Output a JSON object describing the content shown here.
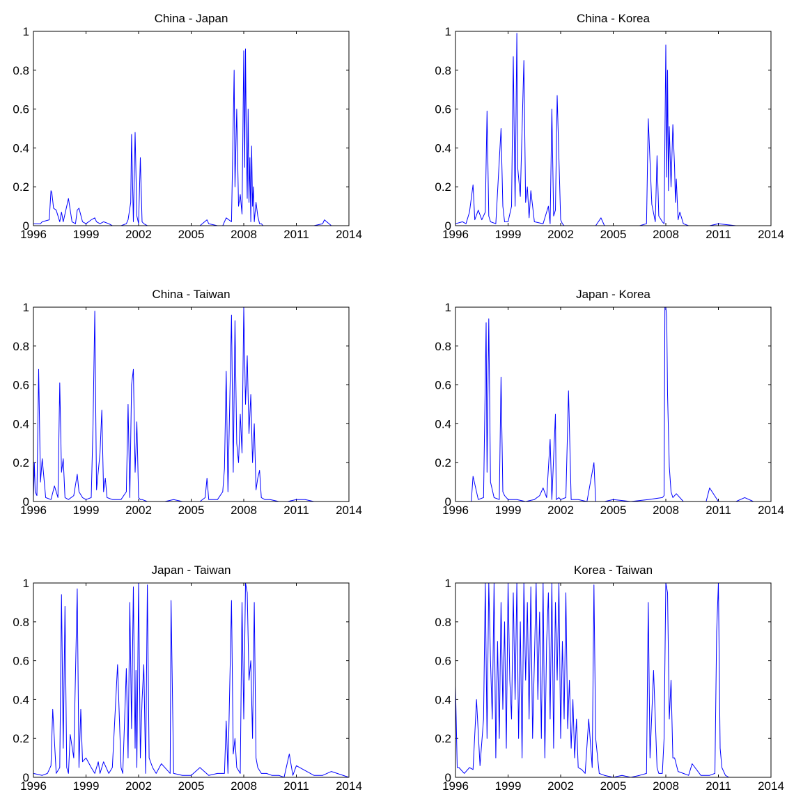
{
  "figure": {
    "line_color": "#0000ff",
    "axis_color": "#000000",
    "background": "#ffffff"
  },
  "chart_data": [
    {
      "type": "line",
      "title": "China - Japan",
      "xlabel": "",
      "ylabel": "",
      "xlim": [
        1996,
        2014
      ],
      "ylim": [
        0,
        1
      ],
      "xticks": [
        1996,
        1999,
        2002,
        2005,
        2008,
        2011,
        2014
      ],
      "yticks": [
        0,
        0.2,
        0.4,
        0.6,
        0.8,
        1
      ],
      "xtick_labels": [
        "1996",
        "1999",
        "2002",
        "2005",
        "2008",
        "2011",
        "2014"
      ],
      "ytick_labels": [
        "0",
        "0.2",
        "0.4",
        "0.6",
        "0.8",
        "1"
      ],
      "grid": false,
      "x": [
        1996.0,
        1996.4,
        1996.5,
        1996.9,
        1997.0,
        1997.05,
        1997.15,
        1997.3,
        1997.5,
        1997.6,
        1997.7,
        1998.0,
        1998.2,
        1998.4,
        1998.5,
        1998.6,
        1998.8,
        1999.0,
        1999.3,
        1999.5,
        1999.6,
        1999.8,
        2000.0,
        2000.3,
        2000.5,
        2001.0,
        2001.3,
        2001.4,
        2001.55,
        2001.6,
        2001.7,
        2001.8,
        2001.9,
        2002.0,
        2002.1,
        2002.2,
        2002.3,
        2002.5,
        2003.0,
        2003.5,
        2004.0,
        2004.5,
        2005.0,
        2005.5,
        2005.9,
        2006.0,
        2006.5,
        2006.8,
        2007.0,
        2007.3,
        2007.45,
        2007.5,
        2007.6,
        2007.7,
        2007.8,
        2007.9,
        2008.0,
        2008.05,
        2008.1,
        2008.15,
        2008.2,
        2008.25,
        2008.3,
        2008.35,
        2008.4,
        2008.45,
        2008.5,
        2008.55,
        2008.6,
        2008.7,
        2008.8,
        2008.9,
        2009.0,
        2009.1,
        2009.3,
        2010.0,
        2011.0,
        2012.0,
        2012.5,
        2012.6,
        2013.0,
        2014.0
      ],
      "y": [
        0.01,
        0.01,
        0.02,
        0.03,
        0.18,
        0.17,
        0.09,
        0.08,
        0.02,
        0.07,
        0.02,
        0.14,
        0.02,
        0.01,
        0.08,
        0.09,
        0.02,
        0.01,
        0.03,
        0.04,
        0.02,
        0.01,
        0.02,
        0.01,
        0.0,
        0.0,
        0.01,
        0.03,
        0.12,
        0.47,
        0.02,
        0.48,
        0.05,
        0.01,
        0.35,
        0.02,
        0.01,
        0.0,
        0.0,
        0.0,
        0.0,
        0.0,
        0.0,
        0.0,
        0.03,
        0.01,
        0.0,
        0.0,
        0.04,
        0.02,
        0.8,
        0.2,
        0.6,
        0.1,
        0.16,
        0.06,
        0.9,
        0.3,
        0.91,
        0.4,
        0.14,
        0.6,
        0.12,
        0.35,
        0.02,
        0.41,
        0.1,
        0.2,
        0.02,
        0.12,
        0.05,
        0.01,
        0.01,
        0.0,
        0.0,
        0.0,
        0.0,
        0.0,
        0.01,
        0.03,
        0.0,
        0.0
      ]
    },
    {
      "type": "line",
      "title": "China - Korea",
      "xlabel": "",
      "ylabel": "",
      "xlim": [
        1996,
        2014
      ],
      "ylim": [
        0,
        1
      ],
      "xticks": [
        1996,
        1999,
        2002,
        2005,
        2008,
        2011,
        2014
      ],
      "yticks": [
        0,
        0.2,
        0.4,
        0.6,
        0.8,
        1
      ],
      "xtick_labels": [
        "1996",
        "1999",
        "2002",
        "2005",
        "2008",
        "2011",
        "2014"
      ],
      "ytick_labels": [
        "0",
        "0.2",
        "0.4",
        "0.6",
        "0.8",
        "1"
      ],
      "grid": false,
      "x": [
        1996.0,
        1996.4,
        1996.6,
        1996.8,
        1997.0,
        1997.1,
        1997.3,
        1997.5,
        1997.7,
        1997.8,
        1997.9,
        1998.0,
        1998.3,
        1998.6,
        1998.7,
        1998.8,
        1999.0,
        1999.2,
        1999.3,
        1999.4,
        1999.5,
        1999.55,
        1999.7,
        1999.9,
        2000.0,
        2000.1,
        2000.2,
        2000.3,
        2000.5,
        2001.0,
        2001.3,
        2001.4,
        2001.5,
        2001.6,
        2001.7,
        2001.8,
        2002.0,
        2002.1,
        2002.2,
        2002.3,
        2002.5,
        2003.0,
        2003.5,
        2004.0,
        2004.3,
        2004.5,
        2005.0,
        2006.0,
        2006.5,
        2006.9,
        2007.0,
        2007.2,
        2007.4,
        2007.5,
        2007.6,
        2007.8,
        2007.9,
        2008.0,
        2008.05,
        2008.1,
        2008.15,
        2008.2,
        2008.3,
        2008.4,
        2008.5,
        2008.55,
        2008.6,
        2008.7,
        2008.8,
        2009.0,
        2009.3,
        2010.0,
        2010.5,
        2011.0,
        2012.0,
        2013.0,
        2014.0
      ],
      "y": [
        0.01,
        0.02,
        0.01,
        0.07,
        0.21,
        0.03,
        0.08,
        0.03,
        0.07,
        0.59,
        0.05,
        0.02,
        0.01,
        0.5,
        0.1,
        0.02,
        0.02,
        0.1,
        0.87,
        0.1,
        0.99,
        0.3,
        0.15,
        0.85,
        0.12,
        0.2,
        0.04,
        0.18,
        0.02,
        0.01,
        0.1,
        0.01,
        0.6,
        0.05,
        0.08,
        0.67,
        0.03,
        0.01,
        0.0,
        0.0,
        0.0,
        0.0,
        0.0,
        0.0,
        0.04,
        0.0,
        0.0,
        0.0,
        0.0,
        0.01,
        0.55,
        0.11,
        0.02,
        0.36,
        0.05,
        0.02,
        0.01,
        0.93,
        0.25,
        0.8,
        0.18,
        0.51,
        0.2,
        0.52,
        0.3,
        0.12,
        0.24,
        0.03,
        0.07,
        0.01,
        0.0,
        0.0,
        0.0,
        0.01,
        0.0,
        0.0,
        0.0
      ]
    },
    {
      "type": "line",
      "title": "China - Taiwan",
      "xlabel": "",
      "ylabel": "",
      "xlim": [
        1996,
        2014
      ],
      "ylim": [
        0,
        1
      ],
      "xticks": [
        1996,
        1999,
        2002,
        2005,
        2008,
        2011,
        2014
      ],
      "yticks": [
        0,
        0.2,
        0.4,
        0.6,
        0.8,
        1
      ],
      "xtick_labels": [
        "1996",
        "1999",
        "2002",
        "2005",
        "2008",
        "2011",
        "2014"
      ],
      "ytick_labels": [
        "0",
        "0.2",
        "0.4",
        "0.6",
        "0.8",
        "1"
      ],
      "grid": false,
      "x": [
        1996.0,
        1996.05,
        1996.1,
        1996.2,
        1996.3,
        1996.4,
        1996.5,
        1996.7,
        1997.0,
        1997.2,
        1997.4,
        1997.5,
        1997.6,
        1997.7,
        1997.8,
        1998.0,
        1998.3,
        1998.5,
        1998.6,
        1998.8,
        1999.0,
        1999.3,
        1999.4,
        1999.5,
        1999.6,
        1999.8,
        1999.9,
        2000.0,
        2000.1,
        2000.2,
        2000.5,
        2001.0,
        2001.3,
        2001.4,
        2001.5,
        2001.6,
        2001.7,
        2001.8,
        2001.9,
        2002.0,
        2002.1,
        2002.2,
        2002.5,
        2003.0,
        2003.5,
        2004.0,
        2004.5,
        2005.0,
        2005.5,
        2005.8,
        2005.9,
        2006.0,
        2006.5,
        2006.8,
        2006.9,
        2007.0,
        2007.1,
        2007.3,
        2007.4,
        2007.5,
        2007.6,
        2007.7,
        2007.8,
        2007.9,
        2008.0,
        2008.1,
        2008.2,
        2008.3,
        2008.4,
        2008.5,
        2008.6,
        2008.7,
        2008.8,
        2008.9,
        2009.0,
        2009.2,
        2009.5,
        2010.0,
        2010.5,
        2011.0,
        2011.5,
        2012.0,
        2013.0,
        2014.0
      ],
      "y": [
        0.02,
        0.2,
        0.05,
        0.03,
        0.68,
        0.1,
        0.22,
        0.02,
        0.01,
        0.08,
        0.02,
        0.61,
        0.15,
        0.22,
        0.02,
        0.01,
        0.03,
        0.14,
        0.05,
        0.02,
        0.01,
        0.02,
        0.4,
        0.98,
        0.06,
        0.25,
        0.47,
        0.05,
        0.12,
        0.02,
        0.01,
        0.01,
        0.05,
        0.5,
        0.02,
        0.6,
        0.68,
        0.15,
        0.41,
        0.02,
        0.01,
        0.01,
        0.0,
        0.0,
        0.0,
        0.01,
        0.0,
        0.0,
        0.0,
        0.02,
        0.12,
        0.01,
        0.01,
        0.05,
        0.17,
        0.67,
        0.05,
        0.96,
        0.15,
        0.93,
        0.3,
        0.2,
        0.45,
        0.25,
        1.0,
        0.5,
        0.75,
        0.35,
        0.55,
        0.2,
        0.4,
        0.06,
        0.12,
        0.16,
        0.02,
        0.01,
        0.01,
        0.0,
        0.0,
        0.01,
        0.01,
        0.0,
        0.0,
        0.0
      ]
    },
    {
      "type": "line",
      "title": "Japan - Korea",
      "xlabel": "",
      "ylabel": "",
      "xlim": [
        1996,
        2014
      ],
      "ylim": [
        0,
        1
      ],
      "xticks": [
        1996,
        1999,
        2002,
        2005,
        2008,
        2011,
        2014
      ],
      "yticks": [
        0,
        0.2,
        0.4,
        0.6,
        0.8,
        1
      ],
      "xtick_labels": [
        "1996",
        "1999",
        "2002",
        "2005",
        "2008",
        "2011",
        "2014"
      ],
      "ytick_labels": [
        "0",
        "0.2",
        "0.4",
        "0.6",
        "0.8",
        "1"
      ],
      "grid": false,
      "x": [
        1996.0,
        1996.5,
        1996.9,
        1997.0,
        1997.3,
        1997.6,
        1997.75,
        1997.8,
        1997.9,
        1998.0,
        1998.2,
        1998.5,
        1998.6,
        1998.7,
        1998.8,
        1999.0,
        1999.5,
        2000.0,
        2000.5,
        2000.8,
        2001.0,
        2001.2,
        2001.4,
        2001.5,
        2001.7,
        2001.75,
        2001.9,
        2002.0,
        2002.3,
        2002.45,
        2002.6,
        2003.0,
        2003.5,
        2003.9,
        2004.0,
        2004.5,
        2005.0,
        2006.0,
        2007.0,
        2007.8,
        2007.9,
        2007.95,
        2008.0,
        2008.05,
        2008.1,
        2008.2,
        2008.3,
        2008.4,
        2008.6,
        2009.0,
        2009.5,
        2010.0,
        2010.3,
        2010.5,
        2011.0,
        2012.0,
        2012.5,
        2013.0,
        2014.0
      ],
      "y": [
        0.0,
        0.0,
        0.0,
        0.13,
        0.01,
        0.02,
        0.92,
        0.15,
        0.94,
        0.1,
        0.02,
        0.01,
        0.64,
        0.05,
        0.03,
        0.01,
        0.01,
        0.0,
        0.01,
        0.03,
        0.07,
        0.02,
        0.32,
        0.01,
        0.45,
        0.01,
        0.02,
        0.01,
        0.02,
        0.57,
        0.01,
        0.01,
        0.0,
        0.2,
        0.0,
        0.0,
        0.01,
        0.0,
        0.01,
        0.02,
        0.03,
        1.0,
        1.0,
        0.95,
        0.55,
        0.18,
        0.05,
        0.02,
        0.04,
        0.0,
        0.0,
        0.0,
        0.0,
        0.07,
        0.0,
        0.0,
        0.02,
        0.0,
        0.0
      ]
    },
    {
      "type": "line",
      "title": "Japan - Taiwan",
      "xlabel": "",
      "ylabel": "",
      "xlim": [
        1996,
        2014
      ],
      "ylim": [
        0,
        1
      ],
      "xticks": [
        1996,
        1999,
        2002,
        2005,
        2008,
        2011,
        2014
      ],
      "yticks": [
        0,
        0.2,
        0.4,
        0.6,
        0.8,
        1
      ],
      "xtick_labels": [
        "1996",
        "1999",
        "2002",
        "2005",
        "2008",
        "2011",
        "2014"
      ],
      "ytick_labels": [
        "0",
        "0.2",
        "0.4",
        "0.6",
        "0.8",
        "1"
      ],
      "grid": false,
      "x": [
        1996.0,
        1996.5,
        1996.8,
        1997.0,
        1997.1,
        1997.3,
        1997.5,
        1997.6,
        1997.7,
        1997.8,
        1997.9,
        1998.0,
        1998.1,
        1998.3,
        1998.5,
        1998.6,
        1998.7,
        1998.8,
        1999.0,
        1999.3,
        1999.5,
        1999.7,
        1999.8,
        2000.0,
        2000.3,
        2000.5,
        2000.8,
        2001.0,
        2001.1,
        2001.3,
        2001.4,
        2001.5,
        2001.6,
        2001.7,
        2001.8,
        2001.85,
        2001.9,
        2002.0,
        2002.1,
        2002.2,
        2002.3,
        2002.4,
        2002.5,
        2002.6,
        2002.8,
        2003.0,
        2003.3,
        2003.6,
        2003.8,
        2003.85,
        2004.0,
        2004.5,
        2005.0,
        2005.5,
        2006.0,
        2006.5,
        2006.9,
        2007.0,
        2007.1,
        2007.3,
        2007.4,
        2007.5,
        2007.6,
        2007.8,
        2007.9,
        2008.0,
        2008.1,
        2008.2,
        2008.3,
        2008.4,
        2008.5,
        2008.6,
        2008.7,
        2008.8,
        2009.0,
        2009.3,
        2009.6,
        2010.0,
        2010.3,
        2010.6,
        2010.8,
        2011.0,
        2012.0,
        2012.5,
        2013.0,
        2014.0
      ],
      "y": [
        0.02,
        0.01,
        0.02,
        0.06,
        0.35,
        0.02,
        0.05,
        0.94,
        0.15,
        0.88,
        0.05,
        0.02,
        0.22,
        0.1,
        0.97,
        0.05,
        0.35,
        0.08,
        0.1,
        0.05,
        0.02,
        0.08,
        0.02,
        0.08,
        0.02,
        0.05,
        0.58,
        0.05,
        0.02,
        0.56,
        0.1,
        0.9,
        0.25,
        0.98,
        0.15,
        0.55,
        0.05,
        1.0,
        0.1,
        0.4,
        0.58,
        0.02,
        0.99,
        0.1,
        0.05,
        0.02,
        0.07,
        0.04,
        0.02,
        0.91,
        0.02,
        0.01,
        0.01,
        0.05,
        0.01,
        0.02,
        0.02,
        0.29,
        0.02,
        0.91,
        0.12,
        0.2,
        0.05,
        0.02,
        0.9,
        0.3,
        1.0,
        0.95,
        0.5,
        0.6,
        0.2,
        0.9,
        0.1,
        0.05,
        0.02,
        0.02,
        0.01,
        0.01,
        0.0,
        0.12,
        0.01,
        0.06,
        0.01,
        0.01,
        0.03,
        0.0
      ]
    },
    {
      "type": "line",
      "title": "Korea - Taiwan",
      "xlabel": "",
      "ylabel": "",
      "xlim": [
        1996,
        2014
      ],
      "ylim": [
        0,
        1
      ],
      "xticks": [
        1996,
        1999,
        2002,
        2005,
        2008,
        2011,
        2014
      ],
      "yticks": [
        0,
        0.2,
        0.4,
        0.6,
        0.8,
        1
      ],
      "xtick_labels": [
        "1996",
        "1999",
        "2002",
        "2005",
        "2008",
        "2011",
        "2014"
      ],
      "ytick_labels": [
        "0",
        "0.2",
        "0.4",
        "0.6",
        "0.8",
        "1"
      ],
      "grid": false,
      "x": [
        1996.0,
        1996.1,
        1996.2,
        1996.5,
        1996.8,
        1997.0,
        1997.2,
        1997.4,
        1997.6,
        1997.7,
        1997.8,
        1997.9,
        1998.0,
        1998.1,
        1998.2,
        1998.3,
        1998.4,
        1998.5,
        1998.6,
        1998.7,
        1998.8,
        1998.9,
        1999.0,
        1999.1,
        1999.2,
        1999.3,
        1999.4,
        1999.5,
        1999.6,
        1999.7,
        1999.8,
        1999.9,
        2000.0,
        2000.1,
        2000.2,
        2000.3,
        2000.4,
        2000.5,
        2000.6,
        2000.7,
        2000.8,
        2000.9,
        2001.0,
        2001.1,
        2001.2,
        2001.3,
        2001.4,
        2001.5,
        2001.6,
        2001.7,
        2001.8,
        2001.9,
        2002.0,
        2002.1,
        2002.2,
        2002.3,
        2002.4,
        2002.5,
        2002.6,
        2002.7,
        2002.8,
        2002.9,
        2003.0,
        2003.2,
        2003.4,
        2003.6,
        2003.8,
        2003.9,
        2004.0,
        2004.2,
        2004.5,
        2005.0,
        2005.5,
        2006.0,
        2006.5,
        2006.9,
        2007.0,
        2007.1,
        2007.3,
        2007.5,
        2007.6,
        2007.8,
        2007.9,
        2008.0,
        2008.1,
        2008.2,
        2008.3,
        2008.4,
        2008.5,
        2008.7,
        2009.0,
        2009.3,
        2009.5,
        2010.0,
        2010.5,
        2010.8,
        2010.9,
        2011.0,
        2011.1,
        2011.2,
        2011.4,
        2011.6,
        2012.0,
        2013.0,
        2014.0
      ],
      "y": [
        0.47,
        0.05,
        0.05,
        0.02,
        0.05,
        0.04,
        0.4,
        0.06,
        0.3,
        1.0,
        0.2,
        1.0,
        0.6,
        0.3,
        1.0,
        0.1,
        0.7,
        0.2,
        0.9,
        0.35,
        0.8,
        0.15,
        1.0,
        0.5,
        0.3,
        0.95,
        0.4,
        1.0,
        0.2,
        0.8,
        0.1,
        1.0,
        0.5,
        0.9,
        0.3,
        0.98,
        0.2,
        0.6,
        1.0,
        0.4,
        0.85,
        0.2,
        1.0,
        0.1,
        0.7,
        0.95,
        0.3,
        1.0,
        0.15,
        0.9,
        0.5,
        1.0,
        0.2,
        0.7,
        0.3,
        0.95,
        0.25,
        0.5,
        0.15,
        0.4,
        0.1,
        0.3,
        0.05,
        0.04,
        0.02,
        0.3,
        0.05,
        0.99,
        0.2,
        0.02,
        0.01,
        0.0,
        0.01,
        0.0,
        0.01,
        0.02,
        0.9,
        0.1,
        0.55,
        0.05,
        0.02,
        0.02,
        0.2,
        1.0,
        0.95,
        0.3,
        0.5,
        0.1,
        0.1,
        0.03,
        0.02,
        0.01,
        0.07,
        0.01,
        0.01,
        0.02,
        0.75,
        1.0,
        0.15,
        0.05,
        0.01,
        0.0,
        0.0,
        0.0,
        0.0
      ]
    }
  ]
}
